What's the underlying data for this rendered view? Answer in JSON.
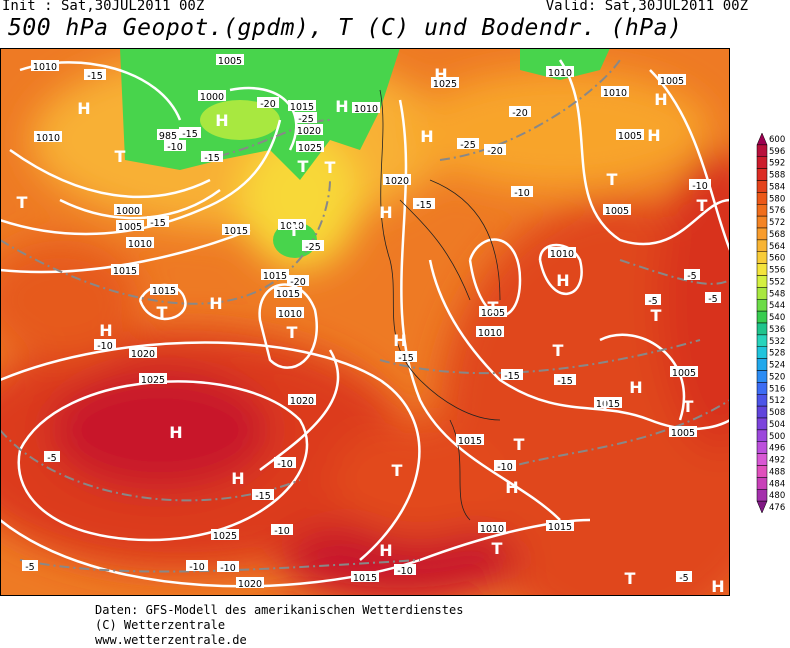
{
  "header": {
    "init": "Init : Sat,30JUL2011 00Z",
    "valid": "Valid: Sat,30JUL2011 00Z",
    "title": "500 hPa Geopot.(gpdm), T (C) und Bodendr. (hPa)"
  },
  "map": {
    "isobar_labels": [
      "1010",
      "-15",
      "1005",
      "1000",
      "-20",
      "1015",
      "1010",
      "-25",
      "1020",
      "985",
      "-15",
      "-10",
      "-15",
      "1025",
      "1010",
      "1025",
      "1010",
      "1010",
      "1005",
      "-20",
      "-25",
      "-20",
      "1005",
      "1020",
      "-15",
      "-10",
      "-10",
      "1005",
      "1000",
      "1005",
      "-15",
      "1010",
      "1015",
      "1010",
      "-25",
      "1015",
      "1015",
      "-20",
      "1015",
      "1015",
      "1010",
      "1010",
      "-5",
      "-5",
      "-5",
      "1005",
      "1010",
      "-10",
      "1020",
      "-15",
      "1025",
      "1020",
      "-15",
      "-15",
      "1005",
      "1015",
      "1005",
      "1015",
      "-10",
      "-10",
      "-5",
      "-15",
      "-10",
      "1025",
      "1010",
      "1015",
      "-5",
      "-10",
      "-10",
      "1020",
      "1015",
      "-10",
      "-5"
    ],
    "symbols": [
      "H",
      "H",
      "H",
      "H",
      "H",
      "H",
      "H",
      "T",
      "T",
      "T",
      "T",
      "T",
      "H",
      "T",
      "T",
      "H",
      "T",
      "H",
      "T",
      "T",
      "H",
      "H",
      "T",
      "T",
      "H",
      "T",
      "T",
      "H",
      "H",
      "T",
      "T",
      "H",
      "H",
      "T",
      "T",
      "H"
    ]
  },
  "colorbar": {
    "labels": [
      600,
      596,
      592,
      588,
      584,
      580,
      576,
      572,
      568,
      564,
      560,
      556,
      552,
      548,
      544,
      540,
      536,
      532,
      528,
      524,
      520,
      516,
      512,
      508,
      504,
      500,
      496,
      492,
      488,
      484,
      480,
      476
    ],
    "colors": [
      "#9c0050",
      "#b8103c",
      "#cc1c2c",
      "#dc2c24",
      "#e4421c",
      "#ec5818",
      "#f06e1c",
      "#f48424",
      "#f89c2c",
      "#f8b434",
      "#f8cc38",
      "#f4e43c",
      "#d4f040",
      "#a8e840",
      "#6cdc48",
      "#38cc50",
      "#20c48c",
      "#28d4bc",
      "#20c4dc",
      "#20a8ec",
      "#2c8cf4",
      "#3c6cf4",
      "#4c54e8",
      "#6044dc",
      "#7c44dc",
      "#9c48dc",
      "#bc50dc",
      "#d858d4",
      "#e050bc",
      "#c840b8",
      "#a430ac",
      "#801884"
    ]
  },
  "footer": {
    "line1": "Daten: GFS-Modell des amerikanischen Wetterdienstes",
    "line2": "(C) Wetterzentrale",
    "line3": "www.wetterzentrale.de"
  }
}
